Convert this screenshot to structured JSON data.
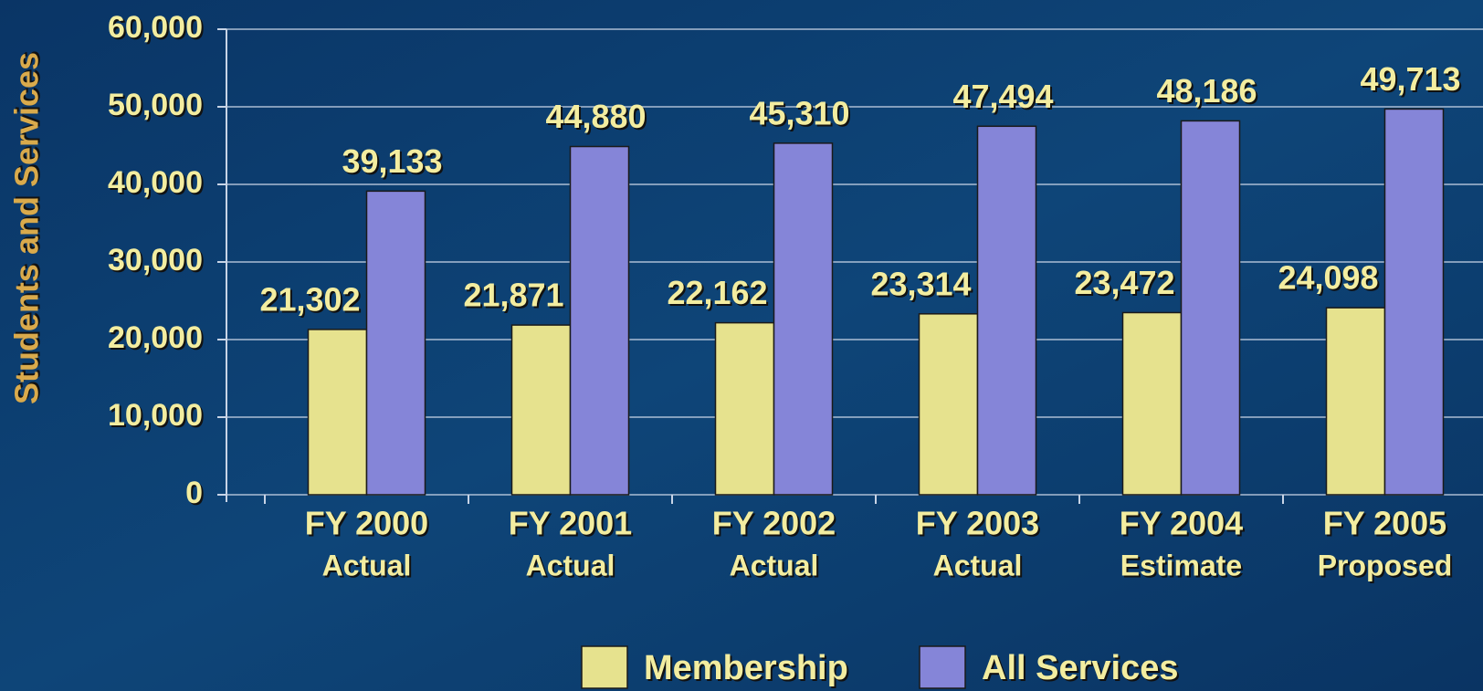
{
  "chart_data": {
    "type": "bar",
    "y_label": "Students and Services",
    "categories": [
      [
        "FY 2000",
        "Actual"
      ],
      [
        "FY 2001",
        "Actual"
      ],
      [
        "FY 2002",
        "Actual"
      ],
      [
        "FY 2003",
        "Actual"
      ],
      [
        "FY 2004",
        "Estimate"
      ],
      [
        "FY 2005",
        "Proposed"
      ]
    ],
    "series": [
      {
        "name": "Membership",
        "color": "#e6e28e",
        "values": [
          21302,
          21871,
          22162,
          23314,
          23472,
          24098
        ],
        "value_labels": [
          "21,302",
          "21,871",
          "22,162",
          "23,314",
          "23,472",
          "24,098"
        ]
      },
      {
        "name": "All Services",
        "color": "#8585d8",
        "values": [
          39133,
          44880,
          45310,
          47494,
          48186,
          49713
        ],
        "value_labels": [
          "39,133",
          "44,880",
          "45,310",
          "47,494",
          "48,186",
          "49,713"
        ]
      }
    ],
    "ylim": [
      0,
      60000
    ],
    "yticks": [
      0,
      {
        "value": 10000,
        "label": "10,000"
      },
      {
        "value": 20000,
        "label": "20,000"
      },
      {
        "value": 30000,
        "label": "30,000"
      },
      {
        "value": 40000,
        "label": "40,000"
      },
      {
        "value": 50000,
        "label": "50,000"
      },
      {
        "value": 60000,
        "label": "60,000"
      }
    ],
    "grid": true,
    "legend": "bottom"
  }
}
